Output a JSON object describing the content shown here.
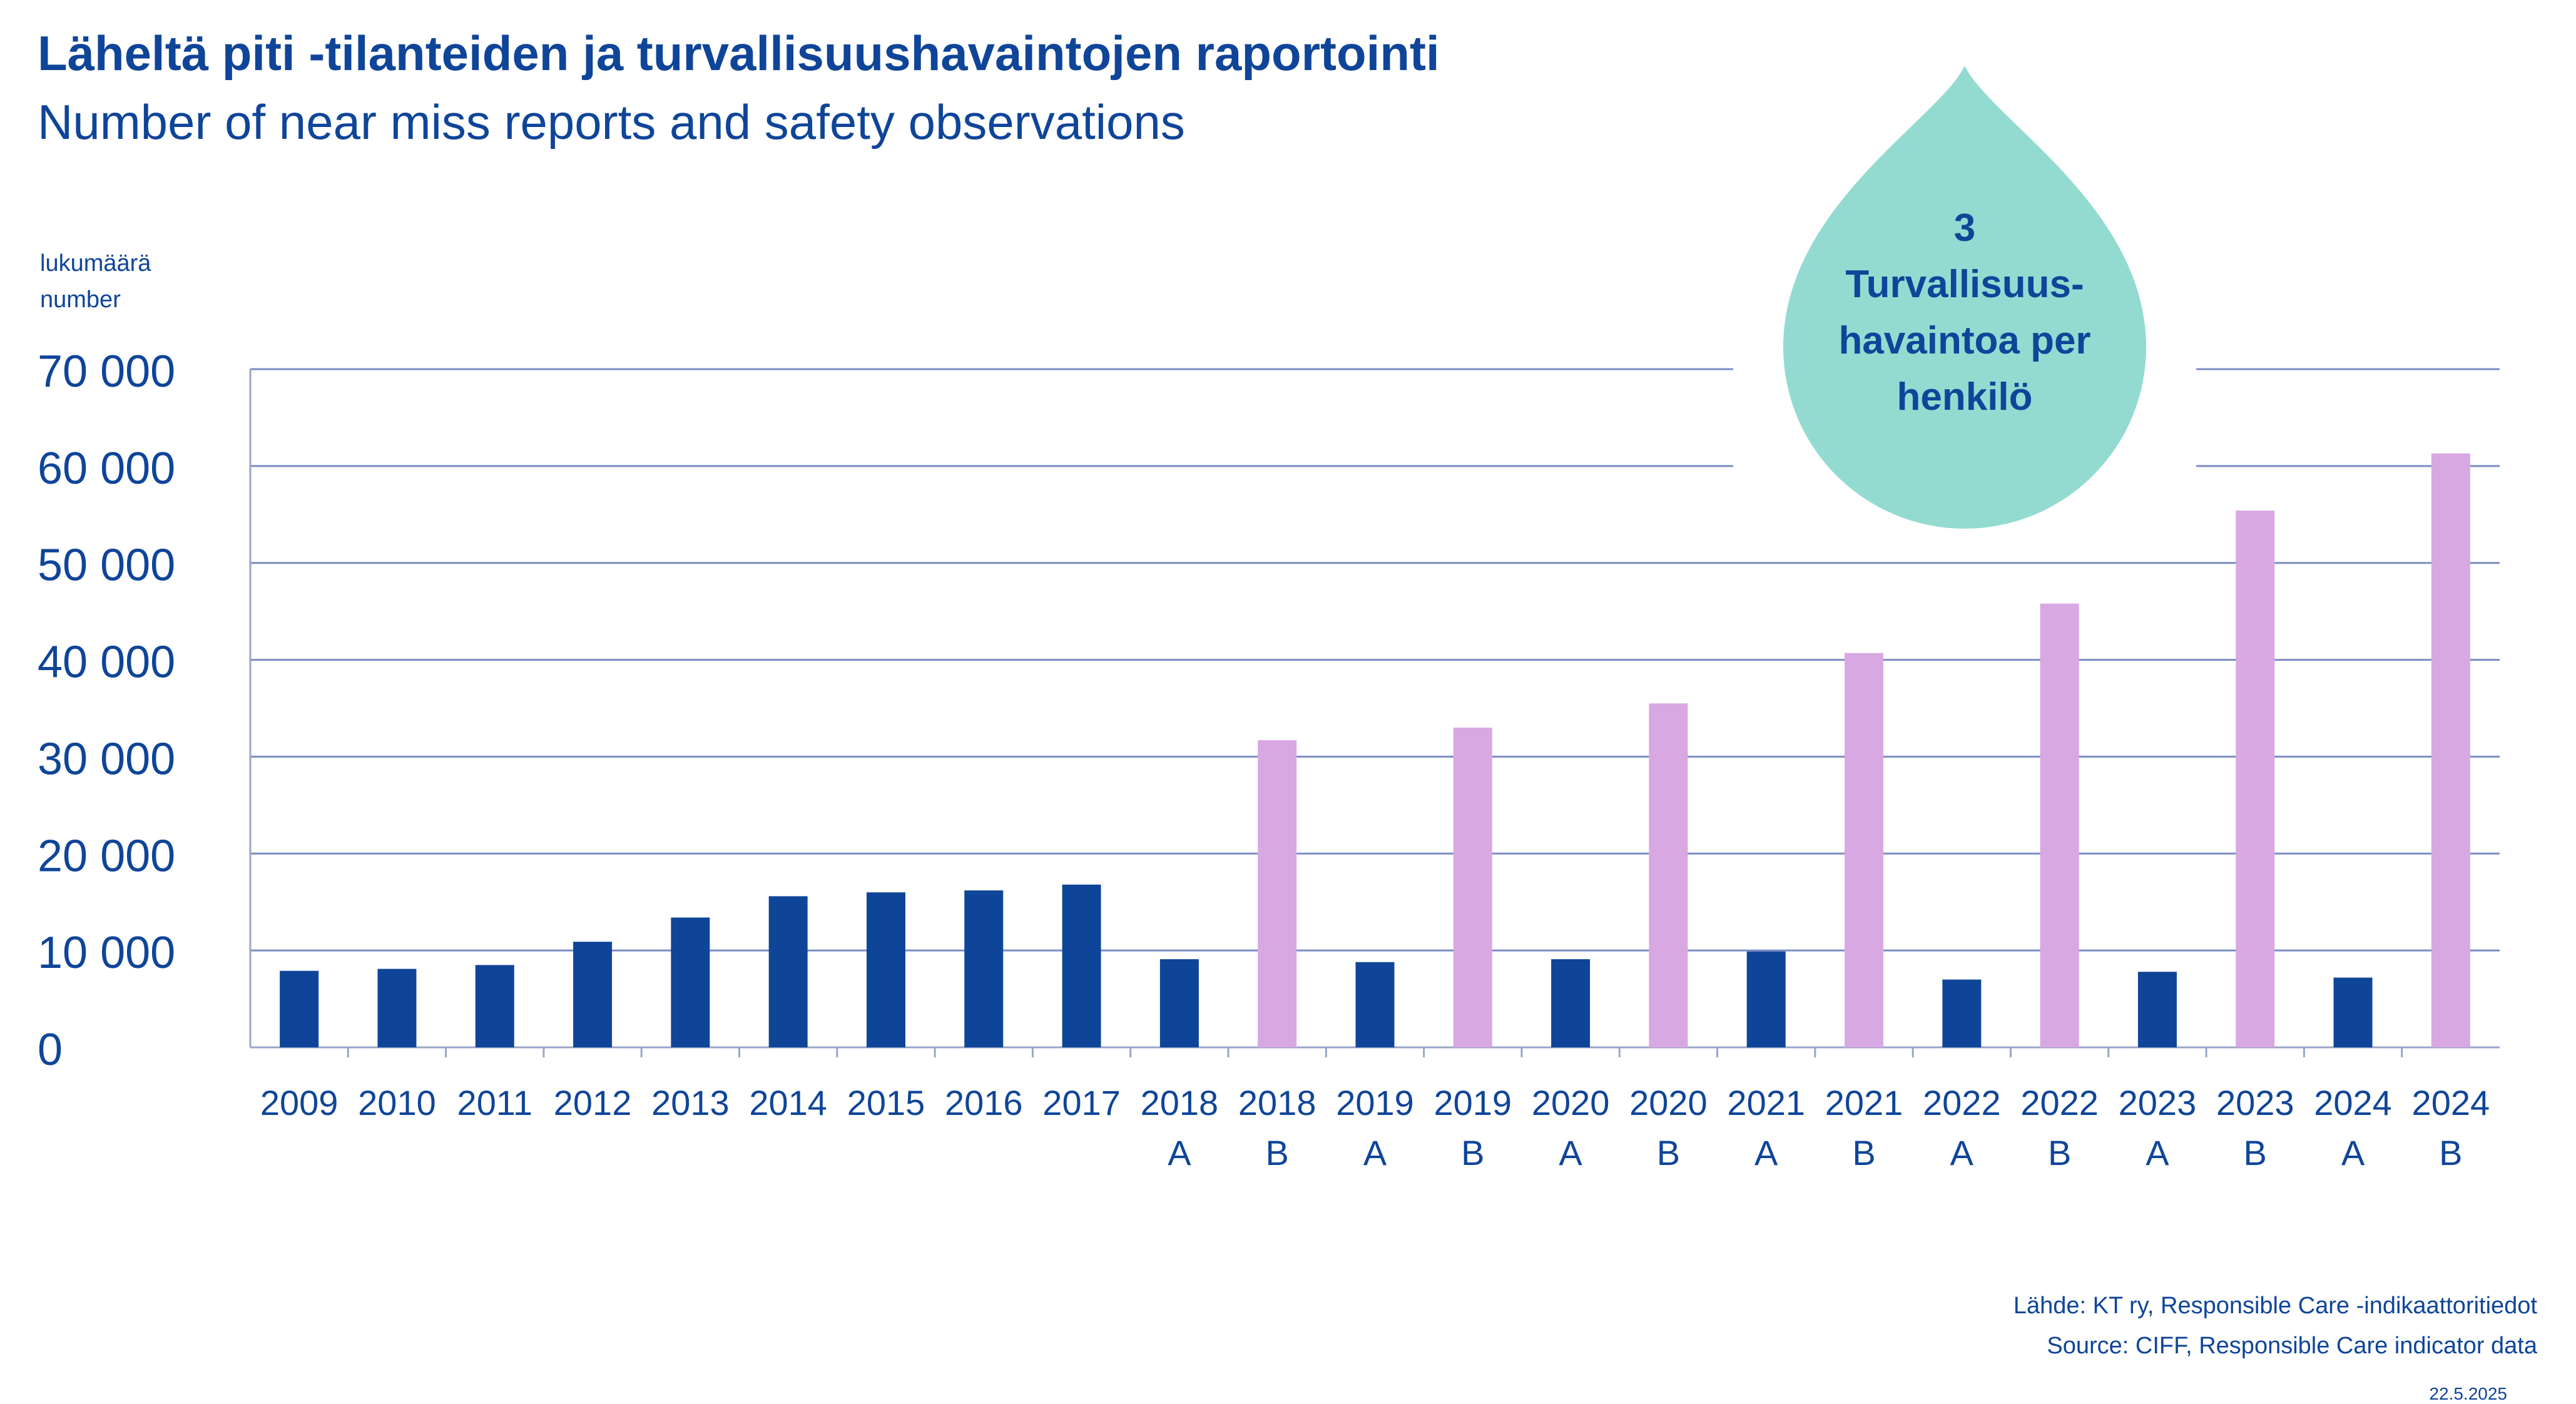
{
  "header": {
    "title": "Läheltä piti -tilanteiden ja turvallisuushavaintojen raportointi",
    "subtitle": "Number of near miss reports and safety observations"
  },
  "unit_label": {
    "fi": "lukumäärä",
    "en": "number"
  },
  "callout": {
    "number": "3",
    "line1": "Turvallisuus-",
    "line2": "havaintoa per",
    "line3": "henkilö",
    "color": "#93dbd1"
  },
  "footer": {
    "source_fi": "Lähde: KT ry, Responsible Care -indikaattoritiedot",
    "source_en": "Source: CIFF, Responsible Care indicator data",
    "date": "22.5.2025"
  },
  "colors": {
    "series_a": "#0f4599",
    "series_b": "#d8a8e2",
    "text": "#0f4599"
  },
  "chart_data": {
    "type": "bar",
    "categories": [
      "2009",
      "2010",
      "2011",
      "2012",
      "2013",
      "2014",
      "2015",
      "2016",
      "2017",
      "2018",
      "2018",
      "2019",
      "2019",
      "2020",
      "2020",
      "2021",
      "2021",
      "2022",
      "2022",
      "2023",
      "2023",
      "2024",
      "2024"
    ],
    "category_sublabels": [
      "",
      "",
      "",
      "",
      "",
      "",
      "",
      "",
      "",
      "A",
      "B",
      "A",
      "B",
      "A",
      "B",
      "A",
      "B",
      "A",
      "B",
      "A",
      "B",
      "A",
      "B"
    ],
    "values": [
      7900,
      8100,
      8500,
      10900,
      13400,
      15600,
      16000,
      16200,
      16800,
      9100,
      31700,
      8800,
      33000,
      9100,
      35500,
      9900,
      40700,
      7000,
      45800,
      7800,
      55400,
      7200,
      61300
    ],
    "bar_group": [
      "A",
      "A",
      "A",
      "A",
      "A",
      "A",
      "A",
      "A",
      "A",
      "A",
      "B",
      "A",
      "B",
      "A",
      "B",
      "A",
      "B",
      "A",
      "B",
      "A",
      "B",
      "A",
      "B"
    ],
    "yticks": [
      "70 000",
      "60 000",
      "50 000",
      "40 000",
      "30 000",
      "20 000",
      "10 000",
      "0"
    ],
    "ytick_values": [
      70000,
      60000,
      50000,
      40000,
      30000,
      20000,
      10000,
      0
    ],
    "ylim": [
      0,
      70000
    ],
    "grid": true
  }
}
